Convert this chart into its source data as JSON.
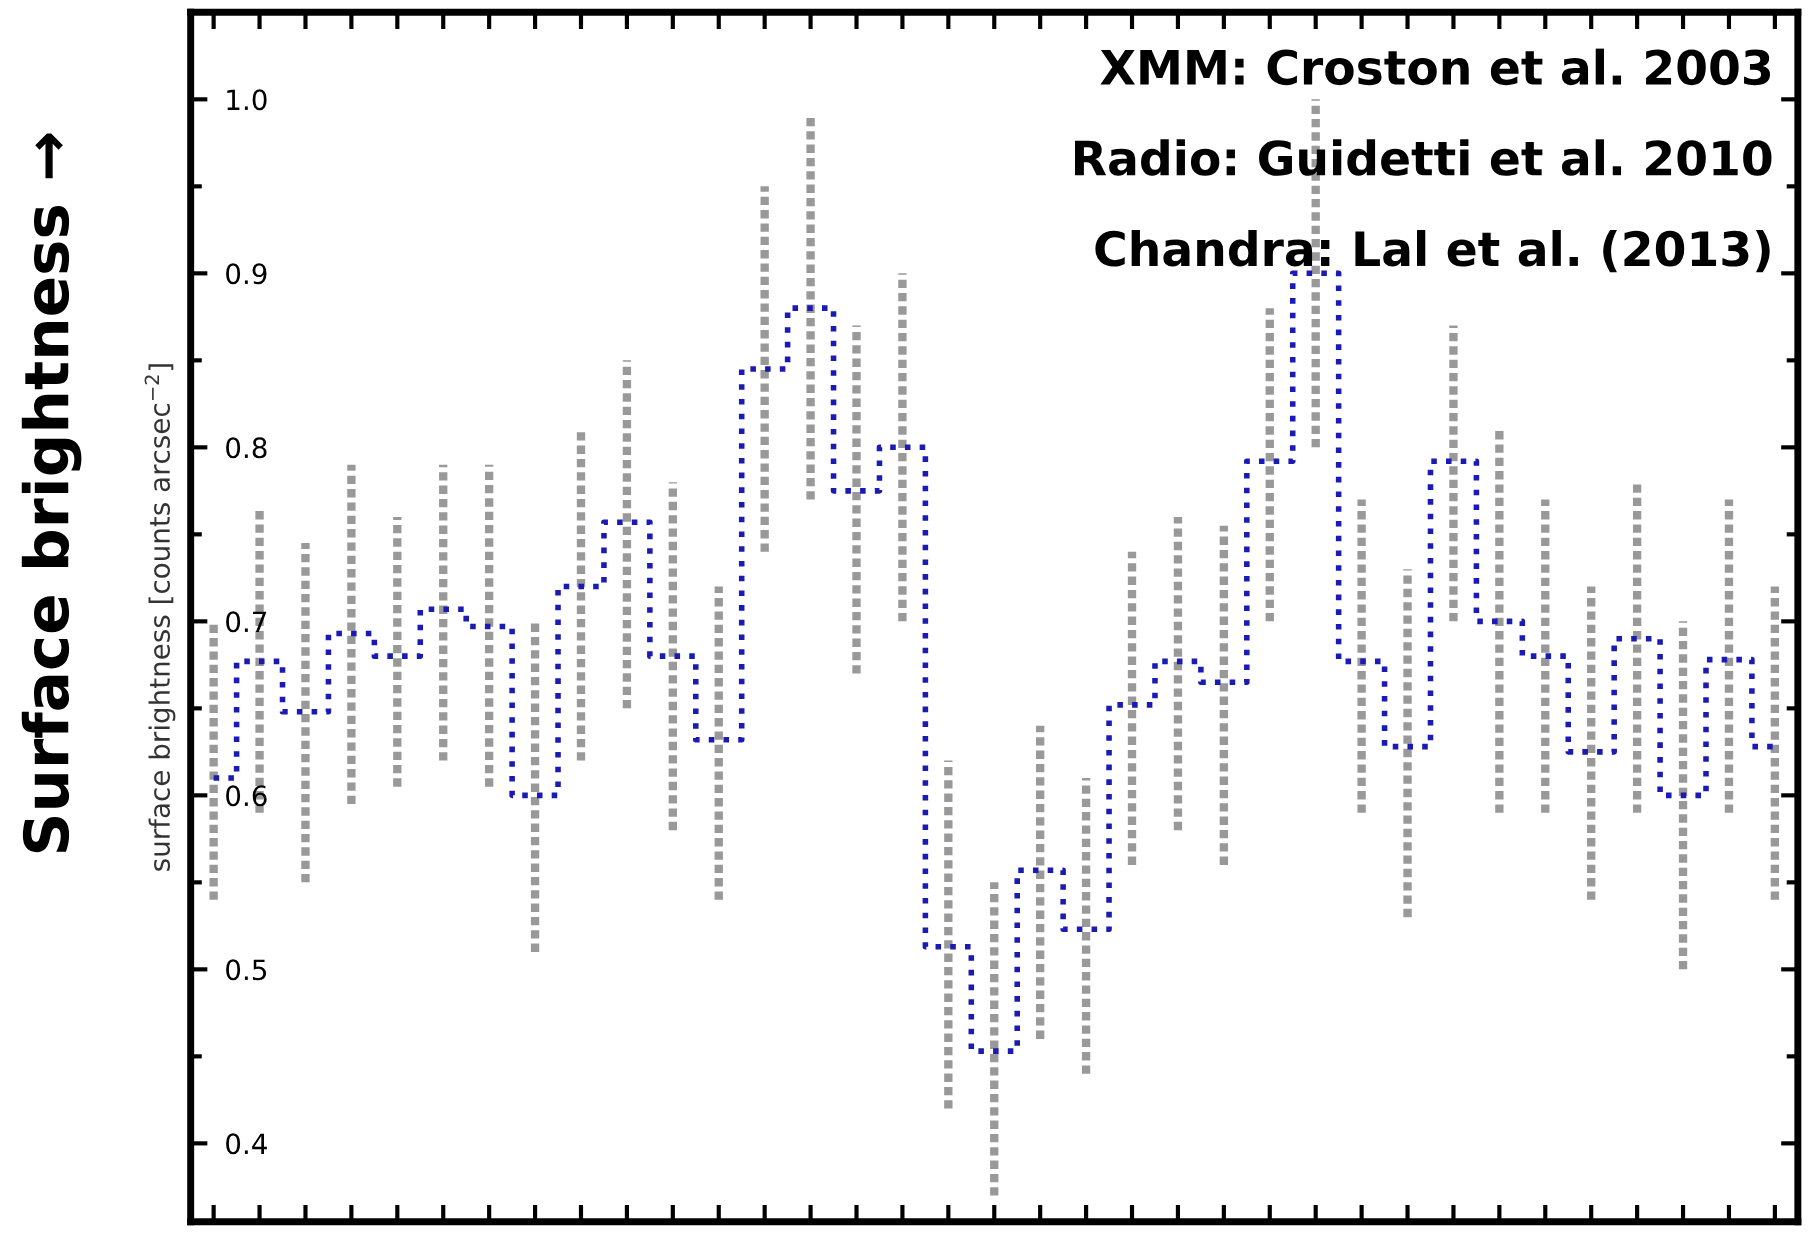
{
  "chart_data": {
    "type": "step",
    "ylabel": "surface brightness [counts arcsec$^{−2}$]",
    "annotations": [
      "Surface brightness →",
      "XMM: Croston et al. 2003",
      "Radio: Guidetti et al. 2010",
      "Chandra: Lal et al. (2013)"
    ],
    "categories": [
      null,
      null,
      null,
      null,
      null,
      null,
      null,
      null,
      null,
      null,
      null,
      null,
      null,
      null,
      null,
      null,
      null,
      null,
      null,
      null,
      null,
      null,
      null,
      null,
      null,
      null,
      null,
      null,
      null,
      null,
      null,
      null,
      null,
      null,
      null
    ],
    "series": [
      {
        "color": "#1a1ab4",
        "values": [
          0.61,
          0.677,
          0.648,
          0.693,
          0.68,
          0.707,
          0.697,
          0.6,
          0.72,
          0.757,
          0.68,
          0.632,
          0.845,
          0.88,
          0.775,
          0.8,
          0.513,
          0.453,
          0.557,
          0.523,
          0.652,
          0.677,
          0.665,
          0.792,
          0.9,
          0.677,
          0.628,
          0.792,
          0.7,
          0.68,
          0.625,
          0.69,
          0.6,
          0.678,
          0.628
        ],
        "errors": [
          [
            0.54,
            0.7
          ],
          [
            0.59,
            0.765
          ],
          [
            0.55,
            0.745
          ],
          [
            0.595,
            0.79
          ],
          [
            0.605,
            0.76
          ],
          [
            0.62,
            0.79
          ],
          [
            0.605,
            0.79
          ],
          [
            0.51,
            0.7
          ],
          [
            0.62,
            0.81
          ],
          [
            0.65,
            0.85
          ],
          [
            0.58,
            0.78
          ],
          [
            0.54,
            0.72
          ],
          [
            0.74,
            0.95
          ],
          [
            0.77,
            0.99
          ],
          [
            0.67,
            0.87
          ],
          [
            0.7,
            0.9
          ],
          [
            0.42,
            0.62
          ],
          [
            0.37,
            0.55
          ],
          [
            0.46,
            0.64
          ],
          [
            0.44,
            0.61
          ],
          [
            0.56,
            0.74
          ],
          [
            0.58,
            0.76
          ],
          [
            0.56,
            0.755
          ],
          [
            0.7,
            0.88
          ],
          [
            0.8,
            1.0
          ],
          [
            0.59,
            0.77
          ],
          [
            0.53,
            0.73
          ],
          [
            0.7,
            0.87
          ],
          [
            0.59,
            0.81
          ],
          [
            0.59,
            0.77
          ],
          [
            0.54,
            0.72
          ],
          [
            0.59,
            0.78
          ],
          [
            0.5,
            0.7
          ],
          [
            0.59,
            0.77
          ],
          [
            0.54,
            0.72
          ]
        ]
      }
    ],
    "ylim": [
      0.355,
      1.05
    ],
    "yticks": [
      0.4,
      0.5,
      0.6,
      0.7,
      0.8,
      0.9,
      {
        "value": 1.0,
        "label": "1.0"
      }
    ],
    "tick_labels": "y",
    "grid": false,
    "line_style": "dotted",
    "marker": "none"
  }
}
